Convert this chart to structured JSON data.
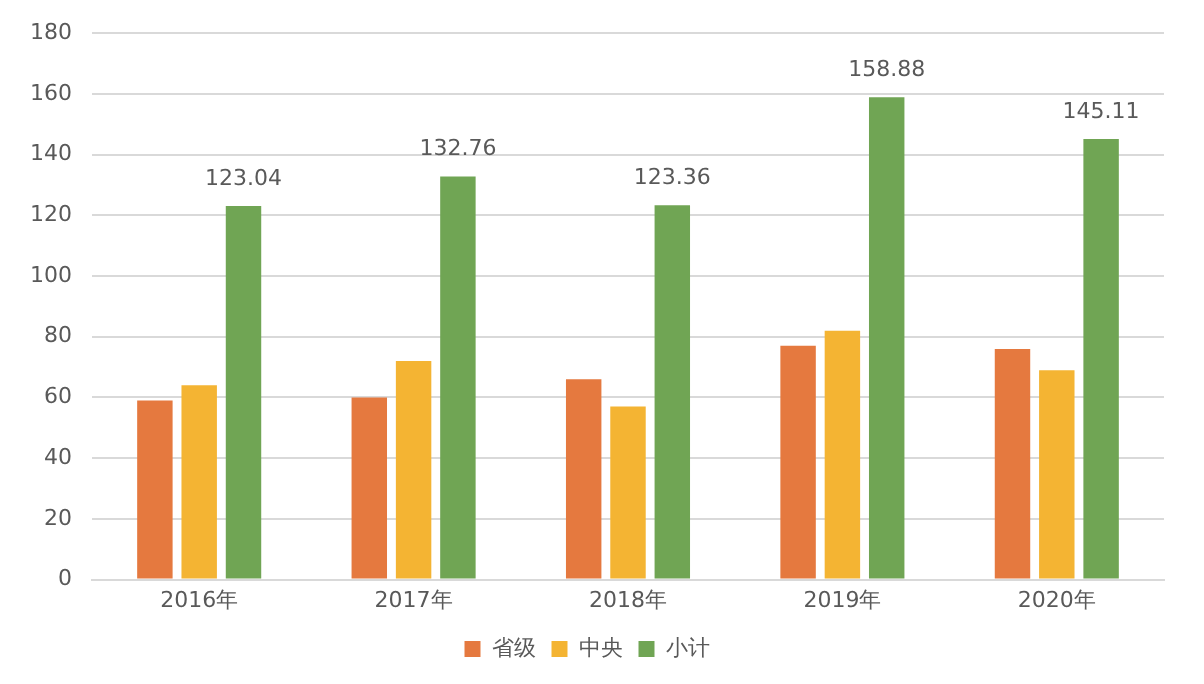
{
  "chart_data": {
    "type": "bar",
    "categories": [
      "2016年",
      "2017年",
      "2018年",
      "2019年",
      "2020年"
    ],
    "series": [
      {
        "name": "省级",
        "color": "#e5793f",
        "values": [
          59,
          60,
          66,
          77,
          76
        ]
      },
      {
        "name": "中央",
        "color": "#f4b433",
        "values": [
          64,
          72,
          57,
          82,
          69
        ]
      },
      {
        "name": "小计",
        "color": "#70a554",
        "values": [
          123.04,
          132.76,
          123.36,
          158.88,
          145.11
        ],
        "value_labels": [
          "123.04",
          "132.76",
          "123.36",
          "158.88",
          "145.11"
        ]
      }
    ],
    "ylim": [
      0,
      180
    ],
    "yticks": [
      0,
      20,
      40,
      60,
      80,
      100,
      120,
      140,
      160,
      180
    ],
    "grid": "y",
    "legend": "bottom"
  }
}
